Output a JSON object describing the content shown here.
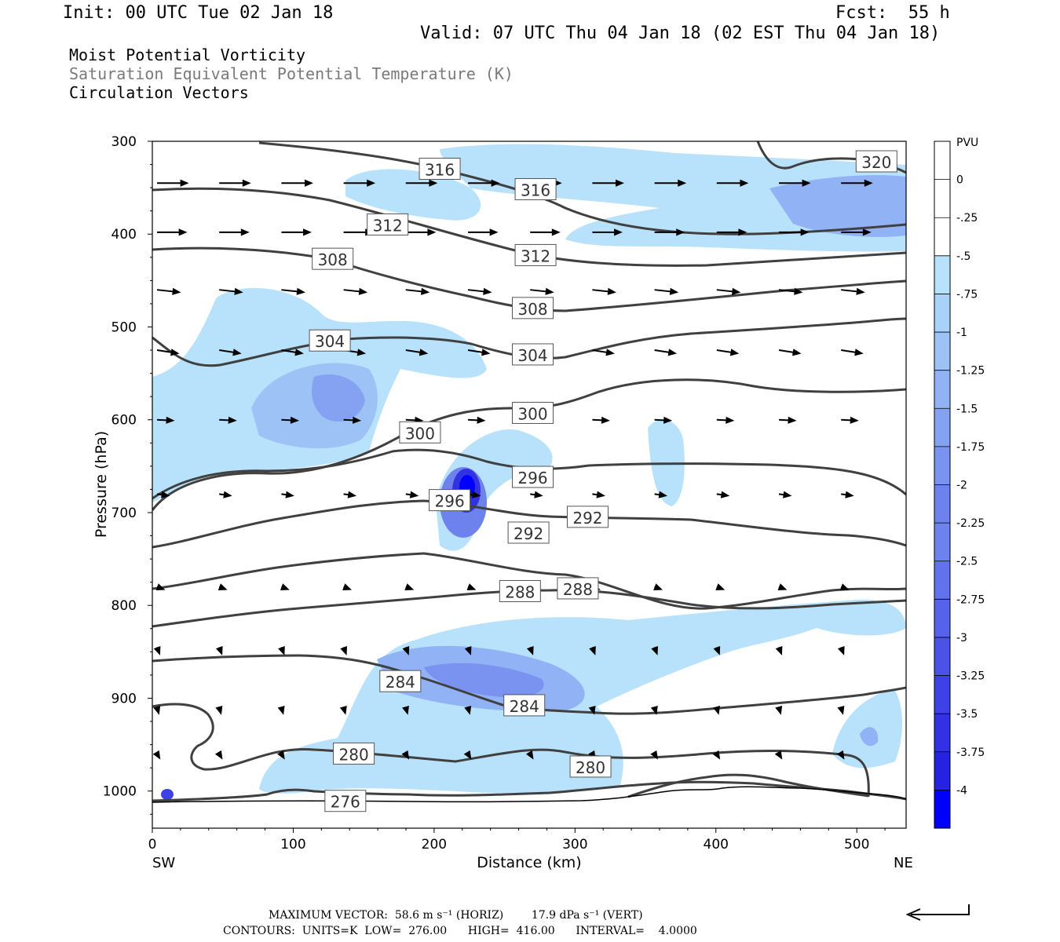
{
  "header": {
    "init": "Init: 00 UTC Tue 02 Jan 18",
    "fcst": "Fcst:  55 h",
    "valid": "Valid: 07 UTC Thu 04 Jan 18 (02 EST Thu 04 Jan 18)"
  },
  "fields": {
    "field1": "Moist Potential Vorticity",
    "field2": "Saturation Equivalent Potential Temperature (K)",
    "field3": "Circulation Vectors"
  },
  "colors": {
    "pv_scale": [
      "#ffffff",
      "#ffffff",
      "#b8e2fb",
      "#a9d2f8",
      "#9dc2f6",
      "#91b2f4",
      "#85a2f2",
      "#7a92f0",
      "#6e82ee",
      "#6272ec",
      "#5662ea",
      "#4a52e8",
      "#3e42e6",
      "#3232e4",
      "#2622e2",
      "#0000ff"
    ],
    "contour": "#404040",
    "vector": "#000000"
  },
  "chart_data": {
    "type": "heatmap",
    "xlabel": "Distance (km)",
    "ylabel": "Pressure (hPa)",
    "xlim": [
      0,
      535
    ],
    "ylim": [
      1040,
      300
    ],
    "x_ticks": [
      "0",
      "100",
      "200",
      "300",
      "400",
      "500"
    ],
    "y_ticks": [
      "300",
      "400",
      "500",
      "600",
      "700",
      "800",
      "900",
      "1000"
    ],
    "x_end_labels": {
      "left": "SW",
      "right": "NE"
    },
    "colorbar": {
      "title": "PVU",
      "labels": [
        "0",
        "-.25",
        "-.5",
        "-.75",
        "-1",
        "-1.25",
        "-1.5",
        "-1.75",
        "-2",
        "-2.25",
        "-2.5",
        "-2.75",
        "-3",
        "-3.25",
        "-3.5",
        "-3.75",
        "-4"
      ]
    },
    "contour_labels": [
      {
        "text": "316",
        "x": 204,
        "p": 330
      },
      {
        "text": "316",
        "x": 272,
        "p": 352
      },
      {
        "text": "320",
        "x": 514,
        "p": 322
      },
      {
        "text": "312",
        "x": 167,
        "p": 390
      },
      {
        "text": "312",
        "x": 272,
        "p": 423
      },
      {
        "text": "308",
        "x": 128,
        "p": 427
      },
      {
        "text": "308",
        "x": 270,
        "p": 480
      },
      {
        "text": "304",
        "x": 126,
        "p": 515
      },
      {
        "text": "304",
        "x": 270,
        "p": 530
      },
      {
        "text": "300",
        "x": 270,
        "p": 593
      },
      {
        "text": "300",
        "x": 190,
        "p": 614
      },
      {
        "text": "296",
        "x": 270,
        "p": 662
      },
      {
        "text": "296",
        "x": 211,
        "p": 687
      },
      {
        "text": "292",
        "x": 309,
        "p": 705
      },
      {
        "text": "292",
        "x": 267,
        "p": 722
      },
      {
        "text": "288",
        "x": 302,
        "p": 782
      },
      {
        "text": "288",
        "x": 261,
        "p": 785
      },
      {
        "text": "284",
        "x": 176,
        "p": 882
      },
      {
        "text": "284",
        "x": 264,
        "p": 908
      },
      {
        "text": "280",
        "x": 143,
        "p": 960
      },
      {
        "text": "280",
        "x": 311,
        "p": 974
      },
      {
        "text": "276",
        "x": 137,
        "p": 1011
      }
    ]
  },
  "footer": {
    "max_vector": "MAXIMUM VECTOR:  58.6 m s⁻¹ (HORIZ)        17.9 dPa s⁻¹ (VERT)",
    "contours": "CONTOURS:  UNITS=K  LOW=  276.00      HIGH=  416.00      INTERVAL=    4.0000"
  }
}
